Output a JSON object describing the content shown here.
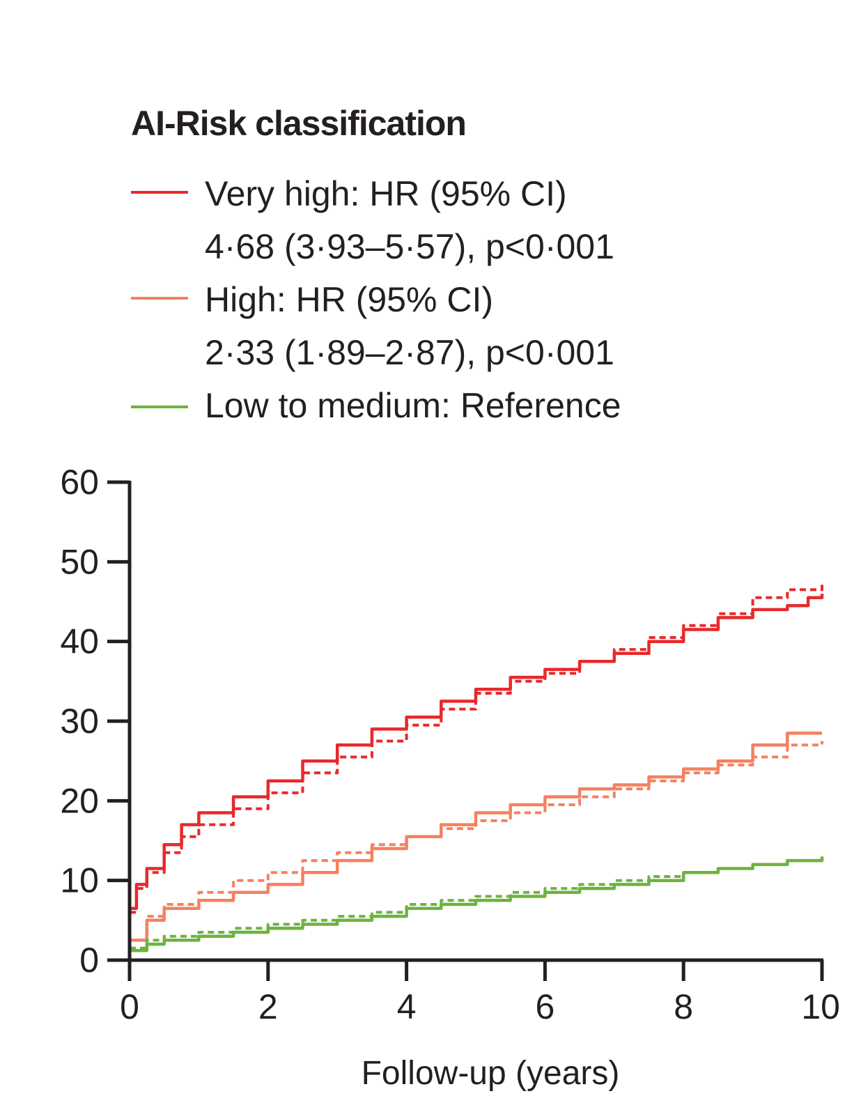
{
  "chart_data": {
    "type": "line",
    "title": "",
    "legend_title": "AI-Risk classification",
    "xlabel": "Follow-up (years)",
    "ylabel": "",
    "xlim": [
      0,
      10
    ],
    "ylim": [
      0,
      60
    ],
    "x_ticks": [
      "0",
      "2",
      "4",
      "6",
      "8",
      "10"
    ],
    "y_ticks": [
      "0",
      "10",
      "20",
      "30",
      "40",
      "50",
      "60"
    ],
    "grid": false,
    "legend_position": "top-left",
    "series": [
      {
        "name": "Very high",
        "legend_lines": [
          "Very high: HR (95% CI)",
          "4·68 (3·93–5·57), p<0·001"
        ],
        "color": "#e8292b",
        "style": "solid",
        "x": [
          0,
          0.1,
          0.25,
          0.5,
          0.75,
          1,
          1.5,
          2,
          2.5,
          3,
          3.5,
          4,
          4.5,
          5,
          5.5,
          6,
          6.5,
          7,
          7.5,
          8,
          8.5,
          9,
          9.5,
          9.8,
          10
        ],
        "y": [
          6.5,
          9.5,
          11.5,
          14.5,
          17,
          18.5,
          20.5,
          22.5,
          25,
          27,
          29,
          30.5,
          32.5,
          34,
          35.5,
          36.5,
          37.5,
          38.5,
          40,
          41.5,
          43,
          44,
          44.5,
          45.5,
          46
        ]
      },
      {
        "name": "Very high (dashed)",
        "color": "#e8292b",
        "style": "dashed",
        "x": [
          0,
          0.1,
          0.25,
          0.5,
          0.75,
          1,
          1.5,
          2,
          2.5,
          3,
          3.5,
          4,
          4.5,
          5,
          5.5,
          6,
          6.5,
          7,
          7.5,
          8,
          8.5,
          9,
          9.5,
          10
        ],
        "y": [
          6,
          9,
          11,
          13.5,
          15.5,
          17,
          19,
          21,
          23.5,
          25.5,
          27.5,
          29.5,
          31.5,
          33.5,
          35,
          36,
          37.5,
          39,
          40.5,
          42,
          43.5,
          45.5,
          46.5,
          47.5
        ]
      },
      {
        "name": "High",
        "legend_lines": [
          "High: HR (95% CI)",
          "2·33 (1·89–2·87), p<0·001"
        ],
        "color": "#f4815f",
        "style": "solid",
        "x": [
          0,
          0.25,
          0.5,
          1,
          1.5,
          2,
          2.5,
          3,
          3.5,
          4,
          4.5,
          5,
          5.5,
          6,
          6.5,
          7,
          7.5,
          8,
          8.5,
          9,
          9.5,
          10
        ],
        "y": [
          2.5,
          5,
          6.5,
          7.5,
          8.5,
          9.5,
          11,
          12.5,
          14,
          15.5,
          17,
          18.5,
          19.5,
          20.5,
          21.5,
          22,
          23,
          24,
          25,
          27,
          28.5,
          28.5
        ]
      },
      {
        "name": "High (dashed)",
        "color": "#f4815f",
        "style": "dashed",
        "x": [
          0,
          0.25,
          0.5,
          1,
          1.5,
          2,
          2.5,
          3,
          3.5,
          4,
          4.5,
          5,
          5.5,
          6,
          6.5,
          7,
          7.5,
          8,
          8.5,
          9,
          9.5,
          10
        ],
        "y": [
          2.5,
          5.5,
          7,
          8.5,
          10,
          11,
          12.5,
          13.5,
          14.5,
          15.5,
          16.5,
          17.5,
          18.5,
          19.5,
          20.5,
          21.5,
          22.5,
          23.5,
          24.5,
          25.5,
          27,
          27.5
        ]
      },
      {
        "name": "Low to medium",
        "legend_lines": [
          "Low to medium: Reference"
        ],
        "color": "#6db33f",
        "style": "solid",
        "x": [
          0,
          0.25,
          0.5,
          1,
          1.5,
          2,
          2.5,
          3,
          3.5,
          4,
          4.5,
          5,
          5.5,
          6,
          6.5,
          7,
          7.5,
          8,
          8.5,
          9,
          9.5,
          10
        ],
        "y": [
          1.2,
          2,
          2.5,
          3,
          3.5,
          4,
          4.5,
          5,
          5.5,
          6.5,
          7,
          7.5,
          8,
          8.5,
          9,
          9.5,
          10,
          11,
          11.5,
          12,
          12.5,
          13
        ]
      },
      {
        "name": "Low to medium (dashed)",
        "color": "#6db33f",
        "style": "dashed",
        "x": [
          0,
          0.25,
          0.5,
          1,
          1.5,
          2,
          2.5,
          3,
          3.5,
          4,
          4.5,
          5,
          5.5,
          6,
          6.5,
          7,
          7.5,
          8,
          8.5,
          9,
          9.5,
          10
        ],
        "y": [
          1.5,
          2.5,
          3,
          3.5,
          4,
          4.5,
          5,
          5.5,
          6,
          7,
          7.5,
          8,
          8.5,
          9,
          9.5,
          10,
          10.5,
          11,
          11.5,
          12,
          12.5,
          13
        ]
      }
    ]
  }
}
